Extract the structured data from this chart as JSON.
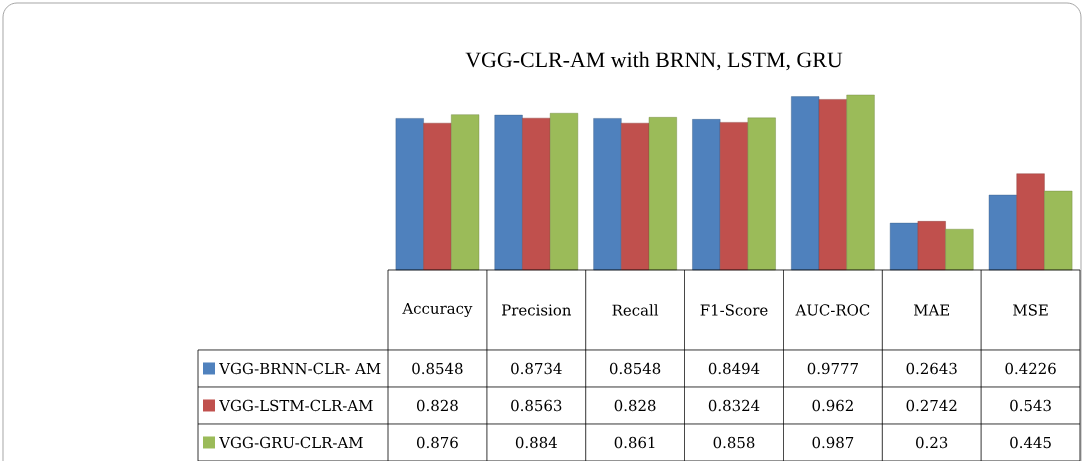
{
  "chart_data": {
    "type": "bar",
    "title": "VGG-CLR-AM with BRNN, LSTM, GRU",
    "categories": [
      "Accuracy",
      "Precision",
      "Recall",
      "F1-Score",
      "AUC-ROC",
      "MAE",
      "MSE"
    ],
    "series": [
      {
        "name": "VGG-BRNN-CLR- AM",
        "color": "#4f81bd",
        "values": [
          0.8548,
          0.8734,
          0.8548,
          0.8494,
          0.9777,
          0.2643,
          0.4226
        ]
      },
      {
        "name": "VGG-LSTM-CLR-AM",
        "color": "#c0504d",
        "values": [
          0.828,
          0.8563,
          0.828,
          0.8324,
          0.962,
          0.2742,
          0.543
        ]
      },
      {
        "name": "VGG-GRU-CLR-AM",
        "color": "#9bbb59",
        "values": [
          0.876,
          0.884,
          0.861,
          0.858,
          0.987,
          0.23,
          0.445
        ]
      }
    ],
    "data_labels": true,
    "legend": "bottom"
  }
}
